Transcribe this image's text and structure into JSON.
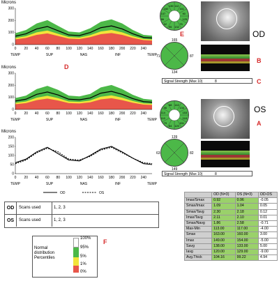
{
  "charts": {
    "od": {
      "title": "Microns",
      "yticks": [
        "0",
        "100",
        "200",
        "300"
      ],
      "xticks": [
        "0",
        "20",
        "40",
        "60",
        "80",
        "100",
        "120",
        "140",
        "160",
        "180",
        "200",
        "220",
        "240"
      ],
      "regions": [
        "TEMP",
        "SUP",
        "NAS",
        "INF",
        "TEMP"
      ],
      "letter": "D"
    },
    "os": {
      "title": "Microns",
      "yticks": [
        "0",
        "100",
        "200",
        "300"
      ],
      "xticks": [
        "0",
        "20",
        "40",
        "60",
        "80",
        "100",
        "120",
        "140",
        "160",
        "180",
        "200",
        "220",
        "240"
      ],
      "regions": [
        "TEMP",
        "SUP",
        "NAS",
        "INF",
        "TEMP"
      ]
    },
    "compare": {
      "title": "Microns",
      "yticks": [
        "0",
        "50",
        "100",
        "150",
        "200"
      ],
      "xticks": [
        "0",
        "20",
        "40",
        "60",
        "80",
        "100",
        "120",
        "140",
        "160",
        "180",
        "200",
        "220",
        "240"
      ],
      "regions": [
        "TEMP",
        "SUP",
        "NAS",
        "INF",
        "TEMP"
      ],
      "legend_od": "OD",
      "legend_os": "OS"
    }
  },
  "chart_data": [
    {
      "type": "area",
      "title": "Microns",
      "x": [
        0,
        20,
        40,
        60,
        80,
        100,
        120,
        140,
        160,
        180,
        200,
        220,
        240,
        256
      ],
      "series": [
        {
          "name": "OD",
          "values": [
            70,
            90,
            130,
            150,
            115,
            80,
            75,
            100,
            140,
            155,
            130,
            90,
            60,
            55
          ]
        }
      ],
      "ylim": [
        0,
        300
      ]
    },
    {
      "type": "area",
      "title": "Microns",
      "x": [
        0,
        20,
        40,
        60,
        80,
        100,
        120,
        140,
        160,
        180,
        200,
        220,
        240,
        256
      ],
      "series": [
        {
          "name": "OS",
          "values": [
            70,
            85,
            125,
            145,
            120,
            85,
            80,
            95,
            135,
            150,
            125,
            90,
            65,
            60
          ]
        }
      ],
      "ylim": [
        0,
        300
      ]
    },
    {
      "type": "line",
      "title": "Microns",
      "x": [
        0,
        20,
        40,
        60,
        80,
        100,
        120,
        140,
        160,
        180,
        200,
        220,
        240,
        256
      ],
      "series": [
        {
          "name": "OD",
          "values": [
            60,
            80,
            120,
            145,
            110,
            75,
            70,
            100,
            135,
            150,
            120,
            85,
            55,
            50
          ]
        },
        {
          "name": "OS",
          "values": [
            55,
            75,
            115,
            140,
            120,
            80,
            75,
            95,
            130,
            145,
            115,
            85,
            60,
            55
          ]
        }
      ],
      "ylim": [
        0,
        200
      ]
    }
  ],
  "od_sectors": {
    "n": [
      "136"
    ],
    "values": [
      "112",
      "161",
      "90",
      "125",
      "75",
      "132",
      "95",
      "92",
      "86",
      "107",
      "160",
      "139"
    ]
  },
  "od_quadrant": {
    "top": "165",
    "left": "71",
    "right": "87",
    "bottom": "134"
  },
  "os_sectors": {
    "values": [
      "142",
      "134",
      "153",
      "118",
      "151",
      "120",
      "84",
      "79",
      "110",
      "114",
      "96",
      "68"
    ]
  },
  "os_quadrant": {
    "top": "139",
    "left": "63",
    "right": "82",
    "bottom": "149"
  },
  "labels": {
    "E": "E",
    "B": "B",
    "C": "C",
    "A": "A",
    "F": "F",
    "OD": "OD",
    "OS": "OS"
  },
  "signal_od": {
    "label": "Signal Strength (Max 10)",
    "value": "8"
  },
  "signal_os": {
    "label": "Signal Strength (Max 10)",
    "value": "8"
  },
  "scans": [
    {
      "eye": "OD",
      "label": "Scans used",
      "value": "1, 2, 3"
    },
    {
      "eye": "OS",
      "label": "Scans used",
      "value": "1, 2, 3"
    }
  ],
  "normal": {
    "title1": "Normal",
    "title2": "distribution",
    "title3": "Percentiles",
    "p100": "100%",
    "p95": "95%",
    "p5": "5%",
    "p1": "1%",
    "p0": "0%"
  },
  "table": {
    "headers": [
      "",
      "OD (N=3)",
      "OS (N=3)",
      "OD-OS"
    ],
    "rows": [
      [
        "Imax/Smax",
        "0.92",
        "0.96",
        "-0.05"
      ],
      [
        "Smax/Imax",
        "1.09",
        "1.04",
        "0.05"
      ],
      [
        "Smax/Tavg",
        "2.30",
        "2.18",
        "0.12"
      ],
      [
        "Imax/Tavg",
        "2.11",
        "2.10",
        "0.01"
      ],
      [
        "Smax/Navg",
        "1.86",
        "2.58",
        "-0.71"
      ],
      [
        "Max-Min",
        "113.00",
        "117.00",
        "-4.00"
      ],
      [
        "Smax",
        "163.00",
        "160.00",
        "3.00"
      ],
      [
        "Imax",
        "149.00",
        "154.00",
        "-5.00"
      ],
      [
        "Savg",
        "138.00",
        "133.00",
        "5.00"
      ],
      [
        "Iavg",
        "120.00",
        "129.00",
        "-9.00"
      ],
      [
        "Avg.Thick",
        "104.16",
        "99.22",
        "4.94"
      ]
    ]
  },
  "colors": {
    "green": "#4cb848",
    "yellow": "#f2e43a",
    "red": "#e8564a",
    "cell_green": "#9ad16a"
  }
}
